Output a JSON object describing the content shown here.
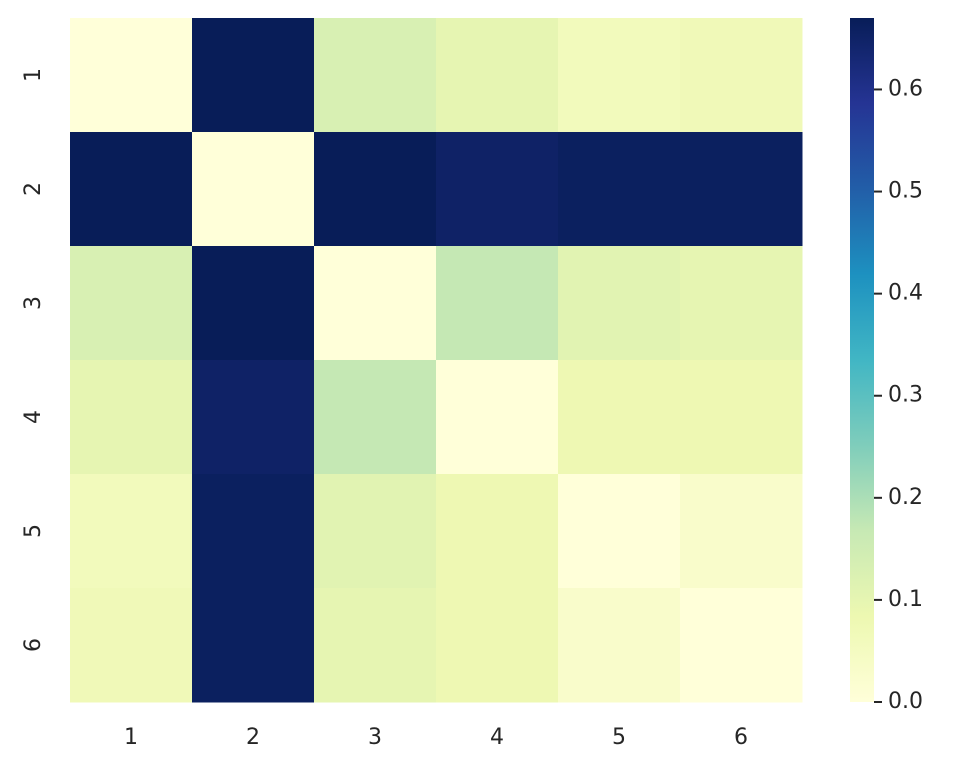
{
  "chart_data": {
    "type": "heatmap",
    "categories": [
      "1",
      "2",
      "3",
      "4",
      "5",
      "6"
    ],
    "y_categories": [
      "1",
      "2",
      "3",
      "4",
      "5",
      "6"
    ],
    "values": [
      [
        0,
        0.67,
        0.13,
        0.1,
        0.06,
        0.07
      ],
      [
        0.67,
        0,
        0.67,
        0.65,
        0.66,
        0.66
      ],
      [
        0.13,
        0.67,
        0,
        0.17,
        0.11,
        0.1
      ],
      [
        0.1,
        0.65,
        0.17,
        0,
        0.08,
        0.08
      ],
      [
        0.06,
        0.66,
        0.11,
        0.08,
        0,
        0.03
      ],
      [
        0.07,
        0.66,
        0.1,
        0.08,
        0.03,
        0
      ]
    ],
    "colormap": "YlGnBu",
    "clim": [
      0,
      0.67
    ],
    "cticks": [
      {
        "value": 0,
        "label": "0.0"
      },
      0.1,
      0.2,
      0.3,
      0.4,
      0.5,
      0.6
    ]
  }
}
